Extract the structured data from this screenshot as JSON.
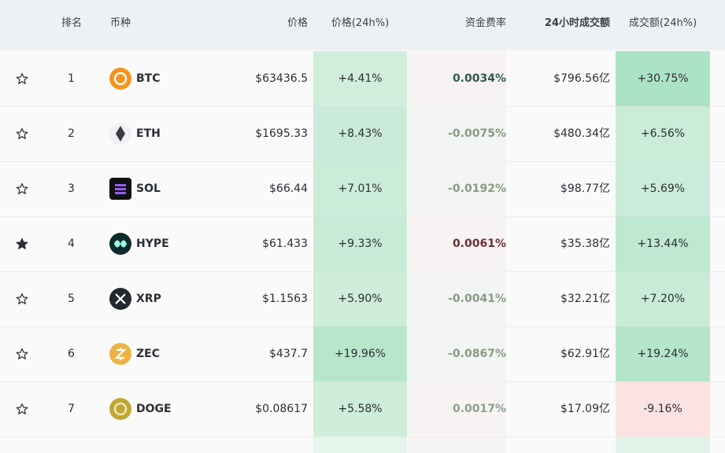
{
  "header": {
    "rank": "排名",
    "coin": "币种",
    "price": "价格",
    "change": "价格(24h%)",
    "funding": "资金费率",
    "volume": "24小时成交额",
    "volume_change": "成交额(24h%)"
  },
  "rows": [
    {
      "starred": false,
      "rank": "1",
      "symbol": "BTC",
      "price": "$63436.5",
      "change": "+4.41%",
      "funding": "0.0034%",
      "volume": "$796.56亿",
      "volume_change": "+30.75%"
    },
    {
      "starred": false,
      "rank": "2",
      "symbol": "ETH",
      "price": "$1695.33",
      "change": "+8.43%",
      "funding": "-0.0075%",
      "volume": "$480.34亿",
      "volume_change": "+6.56%"
    },
    {
      "starred": false,
      "rank": "3",
      "symbol": "SOL",
      "price": "$66.44",
      "change": "+7.01%",
      "funding": "-0.0192%",
      "volume": "$98.77亿",
      "volume_change": "+5.69%"
    },
    {
      "starred": true,
      "rank": "4",
      "symbol": "HYPE",
      "price": "$61.433",
      "change": "+9.33%",
      "funding": "0.0061%",
      "volume": "$35.38亿",
      "volume_change": "+13.44%"
    },
    {
      "starred": false,
      "rank": "5",
      "symbol": "XRP",
      "price": "$1.1563",
      "change": "+5.90%",
      "funding": "-0.0041%",
      "volume": "$32.21亿",
      "volume_change": "+7.20%"
    },
    {
      "starred": false,
      "rank": "6",
      "symbol": "ZEC",
      "price": "$437.7",
      "change": "+19.96%",
      "funding": "-0.0867%",
      "volume": "$62.91亿",
      "volume_change": "+19.24%"
    },
    {
      "starred": false,
      "rank": "7",
      "symbol": "DOGE",
      "price": "$0.08617",
      "change": "+5.58%",
      "funding": "0.0017%",
      "volume": "$17.09亿",
      "volume_change": "-9.16%"
    }
  ]
}
